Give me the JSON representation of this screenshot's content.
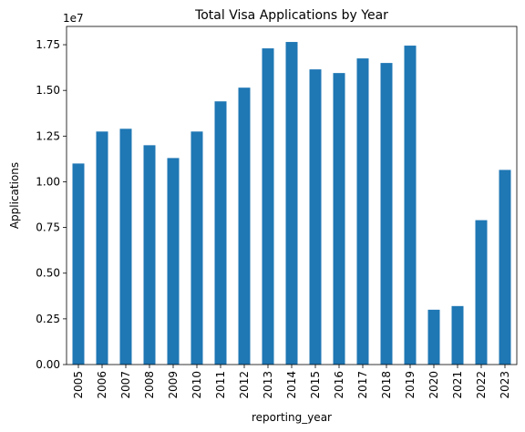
{
  "chart_data": {
    "type": "bar",
    "title": "Total Visa Applications by Year",
    "xlabel": "reporting_year",
    "ylabel": "Applications",
    "y_offset_label": "1e7",
    "y_scale": 10000000,
    "ylim": [
      0,
      18500000
    ],
    "y_ticks": [
      0,
      2500000,
      5000000,
      7500000,
      10000000,
      12500000,
      15000000,
      17500000
    ],
    "y_tick_labels": [
      "0.00",
      "0.25",
      "0.50",
      "0.75",
      "1.00",
      "1.25",
      "1.50",
      "1.75"
    ],
    "categories": [
      "2005",
      "2006",
      "2007",
      "2008",
      "2009",
      "2010",
      "2011",
      "2012",
      "2013",
      "2014",
      "2015",
      "2016",
      "2017",
      "2018",
      "2019",
      "2020",
      "2021",
      "2022",
      "2023"
    ],
    "values": [
      11000000,
      12750000,
      12900000,
      12000000,
      11300000,
      12750000,
      14400000,
      15150000,
      17300000,
      17650000,
      16150000,
      15950000,
      16750000,
      16500000,
      17450000,
      3000000,
      3200000,
      7900000,
      10650000
    ],
    "bar_color": "#1f77b4",
    "grid": false,
    "legend": "none"
  }
}
